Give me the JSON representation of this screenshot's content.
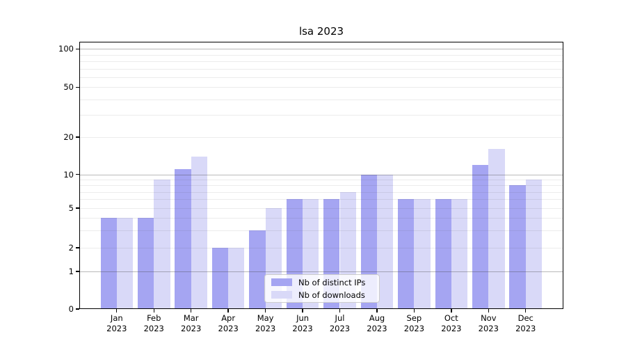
{
  "chart_data": {
    "type": "bar",
    "title": "lsa 2023",
    "categories": [
      "Jan",
      "Feb",
      "Mar",
      "Apr",
      "May",
      "Jun",
      "Jul",
      "Aug",
      "Sep",
      "Oct",
      "Nov",
      "Dec"
    ],
    "year_label": "2023",
    "series": [
      {
        "name": "Nb of distinct IPs",
        "color": "#a5a5f2",
        "values": [
          4,
          4,
          11,
          2,
          3,
          6,
          6,
          10,
          6,
          6,
          12,
          8
        ]
      },
      {
        "name": "Nb of downloads",
        "color": "#d9d9f8",
        "values": [
          4,
          9,
          14,
          2,
          5,
          6,
          7,
          10,
          6,
          6,
          16,
          9
        ]
      }
    ],
    "yaxis": {
      "scale": "log-like (0 baseline, log above 1)",
      "tick_values": [
        0,
        1,
        2,
        5,
        10,
        20,
        50,
        100
      ],
      "tick_labels": [
        "0",
        "1",
        "2",
        "5",
        "10",
        "20",
        "50",
        "100"
      ],
      "major_gridlines": [
        1,
        10,
        100
      ],
      "minor_gridlines": [
        2,
        3,
        4,
        5,
        6,
        7,
        8,
        9,
        20,
        30,
        40,
        50,
        60,
        70,
        80,
        90
      ],
      "ylim": [
        0,
        115
      ]
    },
    "xlabel": "",
    "ylabel": "",
    "grid": true,
    "legend": {
      "position": "lower center",
      "entries": [
        "Nb of distinct IPs",
        "Nb of downloads"
      ]
    }
  }
}
